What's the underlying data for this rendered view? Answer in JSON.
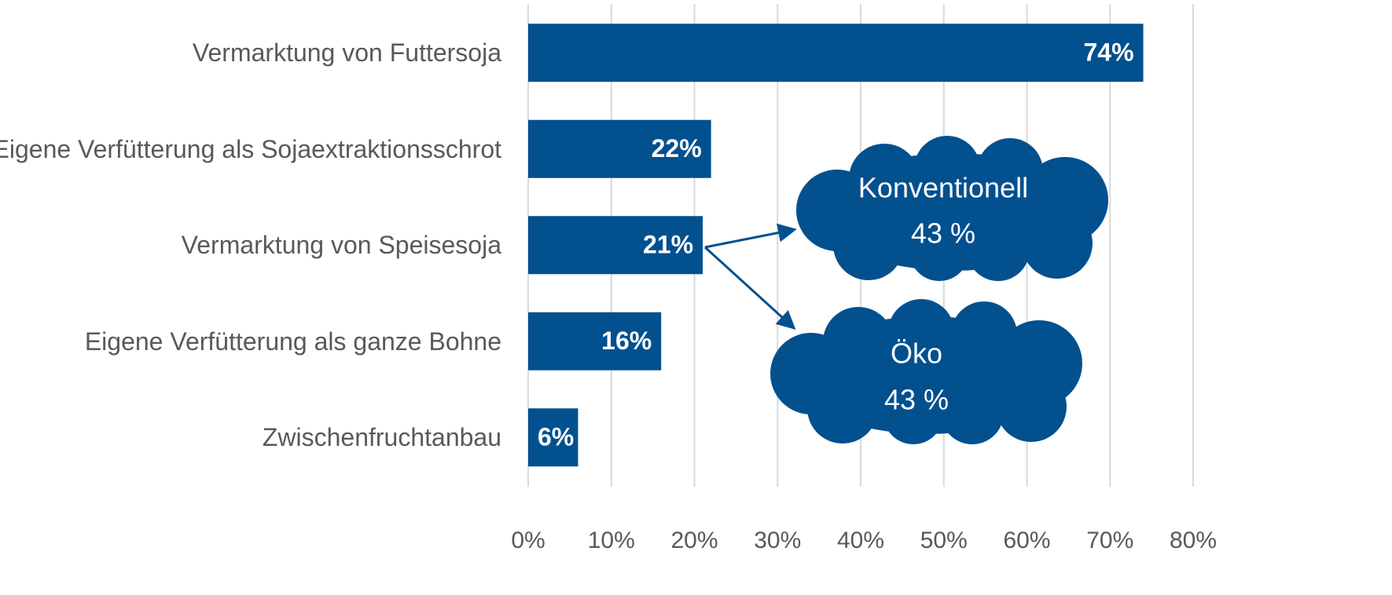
{
  "chart_data": {
    "type": "hbar",
    "categories": [
      "Vermarktung von Futtersoja",
      "Eigene Verfütterung als Sojaextraktionsschrot",
      "Vermarktung von Speisesoja",
      "Eigene Verfütterung als ganze Bohne",
      "Zwischenfruchtanbau"
    ],
    "values": [
      74,
      22,
      21,
      16,
      6
    ],
    "value_labels": [
      "74%",
      "22%",
      "21%",
      "16%",
      "6%"
    ],
    "color": "#03508f",
    "xlim": [
      0,
      80
    ],
    "xticks": [
      {
        "value": 0,
        "label": "0%"
      },
      {
        "value": 10,
        "label": "10%"
      },
      {
        "value": 20,
        "label": "20%"
      },
      {
        "value": 30,
        "label": "30%"
      },
      {
        "value": 40,
        "label": "40%"
      },
      {
        "value": 50,
        "label": "50%"
      },
      {
        "value": 60,
        "label": "60%"
      },
      {
        "value": 70,
        "label": "70%"
      },
      {
        "value": 80,
        "label": "80%"
      }
    ],
    "grid": true,
    "annotations": [
      {
        "lines": [
          "Konventionell",
          "43 %"
        ]
      },
      {
        "lines": [
          "Öko",
          "43 %"
        ]
      }
    ]
  }
}
